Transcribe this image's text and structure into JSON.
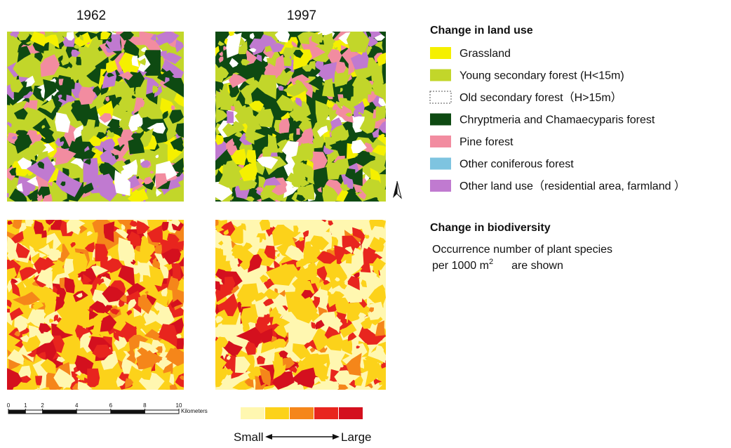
{
  "maps": {
    "years": [
      "1962",
      "1997"
    ]
  },
  "land_use_legend": {
    "title": "Change in land use",
    "items": [
      {
        "label": "Grassland",
        "color": "#f5f000"
      },
      {
        "label": "Young secondary forest (H<15m)",
        "color": "#c2d62a"
      },
      {
        "label": "Old secondary forest（H>15m）",
        "color": "#ffffff"
      },
      {
        "label": "Chryptmeria and Chamaecyparis forest",
        "color": "#0e4a12"
      },
      {
        "label": "Pine forest",
        "color": "#f28ca0"
      },
      {
        "label": "Other coniferous forest",
        "color": "#7ec4e0"
      },
      {
        "label": "Other land use（residential area, farmland ）",
        "color": "#c07ad0"
      }
    ]
  },
  "biodiversity_legend": {
    "title": "Change in biodiversity",
    "line1": "Occurrence number of plant species",
    "line2": "per 1000 m",
    "superscript": "2",
    "line2_end": "are shown",
    "colors": [
      "#fff7b0",
      "#fcd21a",
      "#f5861a",
      "#e8251e",
      "#d4101e"
    ],
    "low_label": "Small",
    "high_label": "Large"
  },
  "scale_bar": {
    "ticks": [
      0,
      1,
      2,
      4,
      6,
      8,
      10
    ],
    "unit": "Kilometers"
  }
}
